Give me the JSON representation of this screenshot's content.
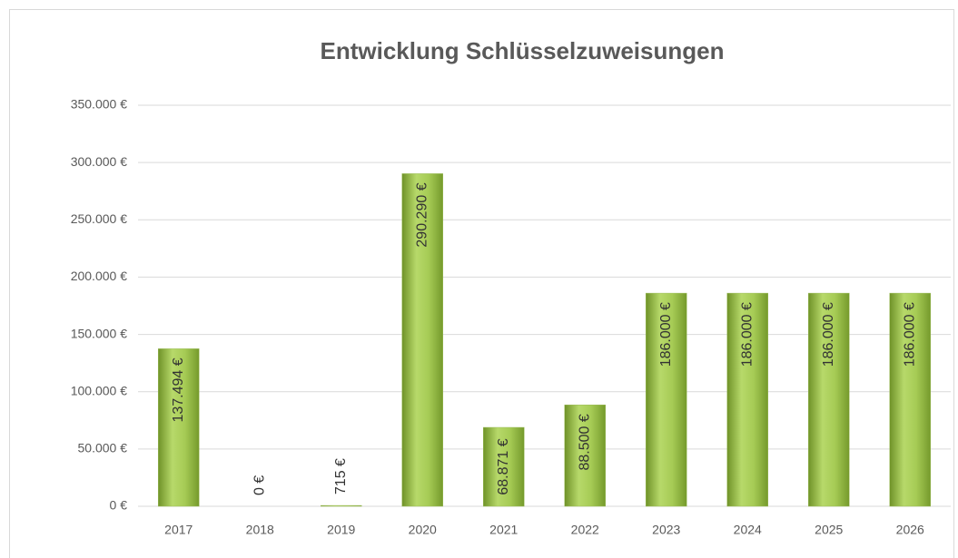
{
  "chart_data": {
    "type": "bar",
    "title": "Entwicklung Schlüsselzuweisungen",
    "categories": [
      "2017",
      "2018",
      "2019",
      "2020",
      "2021",
      "2022",
      "2023",
      "2024",
      "2025",
      "2026"
    ],
    "values": [
      137494,
      0,
      715,
      290290,
      68871,
      88500,
      186000,
      186000,
      186000,
      186000
    ],
    "value_labels": [
      "137.494 €",
      "0 €",
      "715 €",
      "290.290 €",
      "68.871 €",
      "88.500 €",
      "186.000 €",
      "186.000 €",
      "186.000 €",
      "186.000 €"
    ],
    "color": "#9bbb59",
    "ylim": [
      0,
      350000
    ],
    "yticks": [
      {
        "value": 0,
        "label": "0 €"
      },
      {
        "value": 50000,
        "label": "50.000 €"
      },
      {
        "value": 100000,
        "label": "100.000 €"
      },
      {
        "value": 150000,
        "label": "150.000 €"
      },
      {
        "value": 200000,
        "label": "200.000 €"
      },
      {
        "value": 250000,
        "label": "250.000 €"
      },
      {
        "value": 300000,
        "label": "300.000 €"
      },
      {
        "value": 350000,
        "label": "350.000 €"
      }
    ],
    "grid": true
  }
}
